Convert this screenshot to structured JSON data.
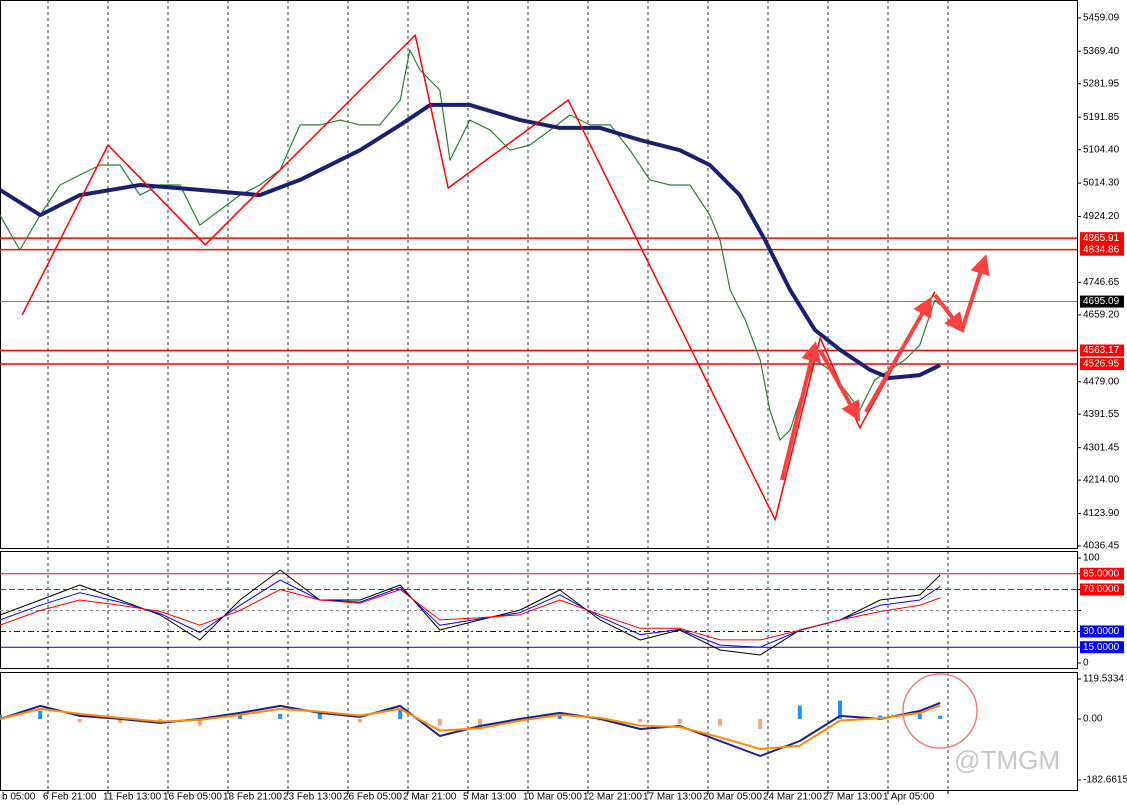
{
  "chart_data": [
    {
      "type": "line",
      "xlim": [
        0.2,
        18.15
      ],
      "xticks": [
        {
          "value": 0,
          "label": "b 05:00"
        },
        {
          "value": 1,
          "label": "6 Feb 21:00"
        },
        {
          "value": 2,
          "label": "11 Feb 13:00"
        },
        {
          "value": 3,
          "label": "16 Feb 05:00"
        },
        {
          "value": 4,
          "label": "18 Feb 21:00"
        },
        {
          "value": 5,
          "label": "23 Feb 13:00"
        },
        {
          "value": 6,
          "label": "26 Feb 05:00"
        },
        {
          "value": 7,
          "label": "2 Mar 21:00"
        },
        {
          "value": 8,
          "label": "5 Mar 13:00"
        },
        {
          "value": 9,
          "label": "10 Mar 05:00"
        },
        {
          "value": 10,
          "label": "12 Mar 21:00"
        },
        {
          "value": 11,
          "label": "17 Mar 13:00"
        },
        {
          "value": 12,
          "label": "20 Mar 05:00"
        },
        {
          "value": 13,
          "label": "24 Mar 21:00"
        },
        {
          "value": 14,
          "label": "27 Mar 13:00"
        },
        {
          "value": 15,
          "label": "1 Apr 05:00"
        },
        {
          "value": 16,
          "label": ""
        }
      ],
      "ylim": [
        4031.06,
        5507.59
      ],
      "yticks": [
        5459.09,
        {
          "value": 5369.4,
          "label": "5369.40"
        },
        5281.95,
        5191.85,
        {
          "value": 5104.4,
          "label": "5104.40"
        },
        {
          "value": 5014.3,
          "label": "5014.30"
        },
        {
          "value": 4924.2,
          "label": "4924.20"
        },
        4746.65,
        {
          "value": 4659.2,
          "label": "4659.20"
        },
        {
          "value": 4479,
          "label": "4479.00"
        },
        4391.55,
        4301.45,
        {
          "value": 4214,
          "label": "4214.00"
        },
        {
          "value": 4123.9,
          "label": "4123.90"
        },
        4036.45
      ],
      "levels": [
        {
          "value": 4865.91,
          "color": "#ff0000",
          "box": "#ff0000"
        },
        {
          "value": 4834.86,
          "color": "#ff0000",
          "box": "#ff0000"
        },
        {
          "value": 4695.09,
          "color": "#4169e1",
          "box": "#000000"
        },
        {
          "value": 4563.17,
          "color": "#ff0000",
          "box": "#ff0000"
        },
        {
          "value": 4526.95,
          "color": "#ff0000",
          "box": "#ff0000"
        }
      ],
      "series": [
        {
          "color": "#2e7d32",
          "width": 1.2,
          "x": [
            0.2,
            0.53,
            0.87,
            1.2,
            1.53,
            1.87,
            2.2,
            2.53,
            2.87,
            3.2,
            3.53,
            3.87,
            4.2,
            4.53,
            4.87,
            5.2,
            5.53,
            5.87,
            6.2,
            6.53,
            6.87,
            7.03,
            7.2,
            7.53,
            7.7,
            8.03,
            8.37,
            8.7,
            9.03,
            9.37,
            9.7,
            10.03,
            10.37,
            10.7,
            11.03,
            11.37,
            11.7,
            12.03,
            12.2,
            12.37,
            12.62,
            12.87,
            13.03,
            13.2,
            13.37,
            13.53,
            13.78,
            14.03,
            14.28,
            14.53,
            14.78,
            15.03,
            15.28,
            15.53,
            15.78,
            15.87
          ],
          "values": [
            4928,
            4834,
            4928,
            5009,
            5036,
            5063,
            5063,
            4982,
            5009,
            5009,
            4901,
            4942,
            4982,
            5009,
            5050,
            5171,
            5171,
            5184,
            5171,
            5171,
            5238,
            5373,
            5319,
            5265,
            5076,
            5184,
            5157,
            5103,
            5117,
            5157,
            5198,
            5171,
            5171,
            5103,
            5023,
            5009,
            5009,
            4928,
            4861,
            4726,
            4646,
            4538,
            4403,
            4322,
            4349,
            4430,
            4538,
            4511,
            4457,
            4403,
            4484,
            4511,
            4538,
            4578,
            4699,
            4686
          ]
        },
        {
          "color": "#1a1f6e",
          "width": 4,
          "x": [
            0.2,
            0.87,
            1.53,
            2.53,
            3.53,
            4.53,
            5.2,
            6.2,
            6.87,
            7.37,
            8.03,
            8.87,
            9.53,
            10.2,
            10.87,
            11.53,
            12.03,
            12.53,
            12.95,
            13.37,
            13.78,
            14.2,
            14.7,
            15.03,
            15.53,
            15.87
          ],
          "values": [
            4996,
            4928,
            4982,
            5009,
            4996,
            4982,
            5023,
            5103,
            5171,
            5225,
            5225,
            5184,
            5163,
            5163,
            5130,
            5103,
            5063,
            4982,
            4861,
            4726,
            4619,
            4565,
            4511,
            4489,
            4497,
            4524
          ]
        },
        {
          "color": "#ff0000",
          "width": 1.5,
          "x": [
            0.57,
            2.0,
            3.62,
            7.12,
            7.67,
            9.67,
            13.12,
            13.87,
            14.53,
            15.78
          ],
          "values": [
            4659,
            5117,
            4848,
            5413,
            5001,
            5238,
            4107,
            4597,
            4355,
            4721
          ]
        }
      ]
    },
    {
      "type": "line",
      "ylim": [
        -4.8,
        106.7
      ],
      "yticks": [
        100,
        {
          "value": 85,
          "label": "85.0000",
          "color": "#ff0000",
          "dash": "none",
          "box": "#ff0000"
        },
        {
          "value": 70,
          "label": "70.0000",
          "color": "#ff0000",
          "dash": "6 3",
          "box": "#ff0000"
        },
        {
          "value": 50,
          "color": "#888888",
          "dash": "3 3"
        },
        {
          "value": 30,
          "label": "30.0000",
          "color": "#0000cc",
          "dash": "6 3 2 3",
          "box": "#0000ff"
        },
        {
          "value": 15,
          "label": "15.0000",
          "color": "#0000cc",
          "dash": "none",
          "box": "#0000ff"
        },
        0
      ],
      "series": [
        {
          "color": "#000000",
          "width": 1,
          "x": [
            0.2,
            0.87,
            1.53,
            2.2,
            2.87,
            3.53,
            4.2,
            4.87,
            5.53,
            6.2,
            6.87,
            7.53,
            8.2,
            8.87,
            9.53,
            10.2,
            10.87,
            11.53,
            12.2,
            12.87,
            13.53,
            14.2,
            14.87,
            15.53,
            15.87
          ],
          "values": [
            45.7,
            60,
            74.3,
            60,
            45.7,
            21.9,
            60,
            88.6,
            60,
            60,
            74.3,
            31.4,
            41,
            50.5,
            69.5,
            41,
            21.9,
            31.4,
            12.4,
            7.6,
            31.4,
            41,
            60,
            64.8,
            83.8
          ]
        },
        {
          "color": "#0000ff",
          "width": 1,
          "x": [
            0.2,
            0.87,
            1.53,
            2.2,
            2.87,
            3.53,
            4.2,
            4.87,
            5.53,
            6.2,
            6.87,
            7.53,
            8.2,
            8.87,
            9.53,
            10.2,
            10.87,
            11.53,
            12.2,
            12.87,
            13.53,
            14.2,
            14.87,
            15.53,
            15.87
          ],
          "values": [
            41,
            55,
            67,
            58,
            47,
            29,
            55,
            79,
            60,
            58,
            72,
            36,
            42,
            48,
            65,
            44,
            27,
            32,
            17,
            15,
            31,
            41,
            55,
            60,
            73
          ]
        },
        {
          "color": "#ff0000",
          "width": 1,
          "x": [
            0.2,
            0.87,
            1.53,
            2.2,
            2.87,
            3.53,
            4.2,
            4.87,
            5.53,
            6.2,
            6.87,
            7.53,
            8.2,
            8.87,
            9.53,
            10.2,
            10.87,
            11.53,
            12.2,
            12.87,
            13.53,
            14.2,
            14.87,
            15.53,
            15.87
          ],
          "values": [
            36,
            50,
            60,
            55,
            49,
            36,
            50,
            70,
            60,
            57,
            70,
            41,
            43,
            46,
            60,
            46,
            33,
            33,
            22,
            22,
            31,
            41,
            49,
            55,
            62
          ]
        }
      ]
    },
    {
      "type": "bar",
      "ylim": [
        -212.7,
        140.5
      ],
      "yticks": [
        119.5334,
        {
          "value": 0,
          "label": "0.00"
        },
        -182.6615
      ],
      "series": [
        {
          "type": "bar",
          "color": "#1e90ff",
          "negative_color": "#f4a582",
          "x": [
            0.2,
            0.87,
            1.53,
            2.2,
            2.87,
            3.53,
            4.2,
            4.87,
            5.53,
            6.2,
            6.87,
            7.53,
            8.2,
            8.87,
            9.53,
            10.2,
            10.87,
            11.53,
            12.2,
            12.87,
            13.53,
            14.2,
            14.87,
            15.53,
            15.87
          ],
          "values": [
            12,
            25,
            -10,
            -12,
            -15,
            -20,
            12,
            15,
            20,
            -10,
            30,
            -20,
            -25,
            -8,
            15,
            -5,
            -10,
            -15,
            -20,
            -30,
            40,
            55,
            10,
            15,
            10
          ]
        },
        {
          "type": "line",
          "color": "#1a1f8e",
          "width": 2,
          "x": [
            0.2,
            0.87,
            1.53,
            2.2,
            2.87,
            3.53,
            4.2,
            4.87,
            5.53,
            6.2,
            6.87,
            7.53,
            8.2,
            8.87,
            9.53,
            10.2,
            10.87,
            11.53,
            12.2,
            12.87,
            13.53,
            14.2,
            14.87,
            15.53,
            15.87
          ],
          "values": [
            0,
            39,
            9,
            0,
            -12,
            0,
            18,
            39,
            18,
            6,
            39,
            -51,
            -21,
            0,
            18,
            0,
            -30,
            -21,
            -66,
            -111,
            -66,
            9,
            0,
            24,
            48
          ]
        },
        {
          "type": "line",
          "color": "#ff8c00",
          "width": 2,
          "x": [
            0.2,
            0.87,
            1.53,
            2.2,
            2.87,
            3.53,
            4.2,
            4.87,
            5.53,
            6.2,
            6.87,
            7.53,
            8.2,
            8.87,
            9.53,
            10.2,
            10.87,
            11.53,
            12.2,
            12.87,
            13.53,
            14.2,
            14.87,
            15.53,
            15.87
          ],
          "values": [
            0,
            30,
            15,
            3,
            -8,
            -3,
            12,
            30,
            22,
            10,
            30,
            -35,
            -28,
            -5,
            12,
            3,
            -20,
            -24,
            -55,
            -90,
            -80,
            -5,
            2,
            18,
            40
          ]
        }
      ]
    }
  ],
  "watermark": "@TMGM"
}
